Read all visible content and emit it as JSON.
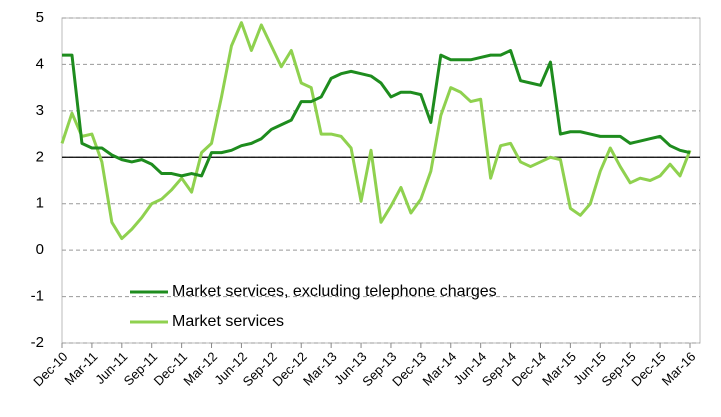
{
  "chart_data": {
    "type": "line",
    "categories": [
      "Dec-10",
      null,
      null,
      "Mar-11",
      null,
      null,
      "Jun-11",
      null,
      null,
      "Sep-11",
      null,
      null,
      "Dec-11",
      null,
      null,
      "Mar-12",
      null,
      null,
      "Jun-12",
      null,
      null,
      "Sep-12",
      null,
      null,
      "Dec-12",
      null,
      null,
      "Mar-13",
      null,
      null,
      "Jun-13",
      null,
      null,
      "Sep-13",
      null,
      null,
      "Dec-13",
      null,
      null,
      "Mar-14",
      null,
      null,
      "Jun-14",
      null,
      null,
      "Sep-14",
      null,
      null,
      "Dec-14",
      null,
      null,
      "Mar-15",
      null,
      null,
      "Jun-15",
      null,
      null,
      "Sep-15",
      null,
      null,
      "Dec-15",
      null,
      null,
      "Mar-16"
    ],
    "series": [
      {
        "name": "Market services, excluding telephone charges",
        "color": "#1e8c1e",
        "values": [
          4.2,
          4.2,
          2.3,
          2.2,
          2.2,
          2.05,
          1.95,
          1.9,
          1.95,
          1.85,
          1.65,
          1.65,
          1.6,
          1.65,
          1.6,
          2.1,
          2.1,
          2.15,
          2.25,
          2.3,
          2.4,
          2.6,
          2.7,
          2.8,
          3.2,
          3.2,
          3.3,
          3.7,
          3.8,
          3.85,
          3.8,
          3.75,
          3.6,
          3.3,
          3.4,
          3.4,
          3.35,
          2.75,
          4.2,
          4.1,
          4.1,
          4.1,
          4.15,
          4.2,
          4.2,
          4.3,
          3.65,
          3.6,
          3.55,
          4.05,
          2.5,
          2.55,
          2.55,
          2.5,
          2.45,
          2.45,
          2.45,
          2.3,
          2.35,
          2.4,
          2.45,
          2.25,
          2.15,
          2.1
        ]
      },
      {
        "name": "Market services",
        "color": "#8fd14f",
        "values": [
          2.3,
          2.95,
          2.45,
          2.5,
          1.9,
          0.6,
          0.25,
          0.45,
          0.7,
          1.0,
          1.1,
          1.3,
          1.55,
          1.25,
          2.1,
          2.3,
          3.3,
          4.4,
          4.9,
          4.3,
          4.85,
          4.4,
          3.95,
          4.3,
          3.6,
          3.5,
          2.5,
          2.5,
          2.45,
          2.2,
          1.05,
          2.15,
          0.6,
          0.95,
          1.35,
          0.8,
          1.1,
          1.7,
          2.9,
          3.5,
          3.4,
          3.2,
          3.25,
          1.55,
          2.25,
          2.3,
          1.9,
          1.8,
          1.9,
          2.0,
          1.95,
          0.9,
          0.75,
          1.0,
          1.7,
          2.2,
          1.8,
          1.45,
          1.55,
          1.5,
          1.6,
          1.85,
          1.6,
          2.15
        ]
      }
    ],
    "ylim": [
      -2,
      5
    ],
    "yticks": [
      -2,
      -1,
      0,
      1,
      2,
      3,
      4,
      5
    ],
    "grid": true,
    "hline": 2
  }
}
